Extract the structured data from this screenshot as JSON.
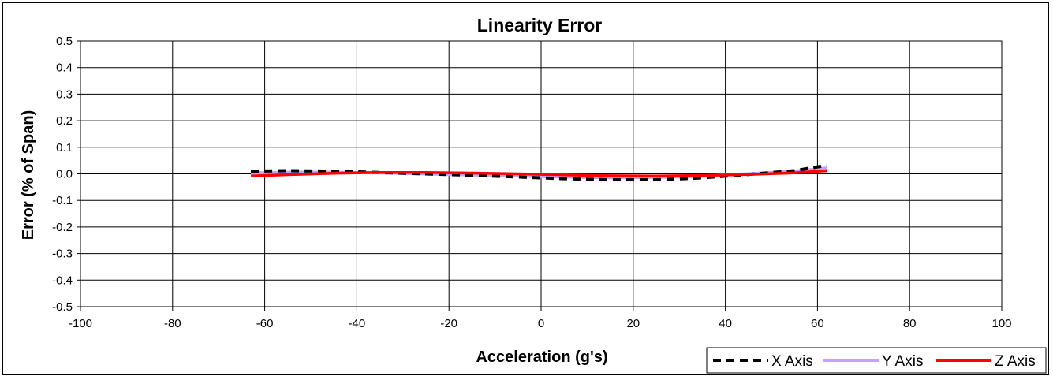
{
  "chart_data": {
    "type": "line",
    "title": "Linearity Error",
    "xlabel": "Acceleration (g's)",
    "ylabel": "Error (% of Span)",
    "xlim": [
      -100,
      100
    ],
    "ylim": [
      -0.5,
      0.5
    ],
    "x_ticks": [
      -100,
      -80,
      -60,
      -40,
      -20,
      0,
      20,
      40,
      60,
      80,
      100
    ],
    "y_ticks": [
      -0.5,
      -0.4,
      -0.3,
      -0.2,
      -0.1,
      0.0,
      0.1,
      0.2,
      0.3,
      0.4,
      0.5
    ],
    "y_tick_labels": [
      "-0.5",
      "-0.4",
      "-0.3",
      "-0.2",
      "-0.1",
      "0.0",
      "0.1",
      "0.2",
      "0.3",
      "0.4",
      "0.5"
    ],
    "x_tick_labels": [
      "-100",
      "-80",
      "-60",
      "-40",
      "-20",
      "0",
      "20",
      "40",
      "60",
      "80",
      "100"
    ],
    "grid": true,
    "legend_position": "bottom-right",
    "series": [
      {
        "name": "X Axis",
        "color": "#000000",
        "style": "dashed",
        "x": [
          -63,
          -55,
          -45,
          -35,
          -25,
          -15,
          -5,
          5,
          15,
          25,
          35,
          45,
          55,
          62
        ],
        "y": [
          0.01,
          0.012,
          0.01,
          0.005,
          0.0,
          -0.005,
          -0.012,
          -0.018,
          -0.022,
          -0.022,
          -0.015,
          -0.002,
          0.012,
          0.032
        ]
      },
      {
        "name": "Y Axis",
        "color": "#c8a0ff",
        "style": "solid",
        "x": [
          -63,
          -55,
          -45,
          -35,
          -25,
          -15,
          -5,
          5,
          15,
          25,
          35,
          45,
          55,
          62
        ],
        "y": [
          0.003,
          0.006,
          0.006,
          0.004,
          0.0,
          -0.004,
          -0.008,
          -0.012,
          -0.014,
          -0.013,
          -0.008,
          0.0,
          0.01,
          0.022
        ]
      },
      {
        "name": "Z Axis",
        "color": "#ff0000",
        "style": "solid",
        "x": [
          -63,
          -55,
          -45,
          -35,
          -25,
          -15,
          -5,
          5,
          15,
          25,
          35,
          45,
          55,
          62
        ],
        "y": [
          -0.008,
          -0.003,
          0.002,
          0.005,
          0.005,
          0.003,
          0.0,
          -0.004,
          -0.007,
          -0.008,
          -0.006,
          -0.002,
          0.004,
          0.012
        ]
      }
    ]
  }
}
